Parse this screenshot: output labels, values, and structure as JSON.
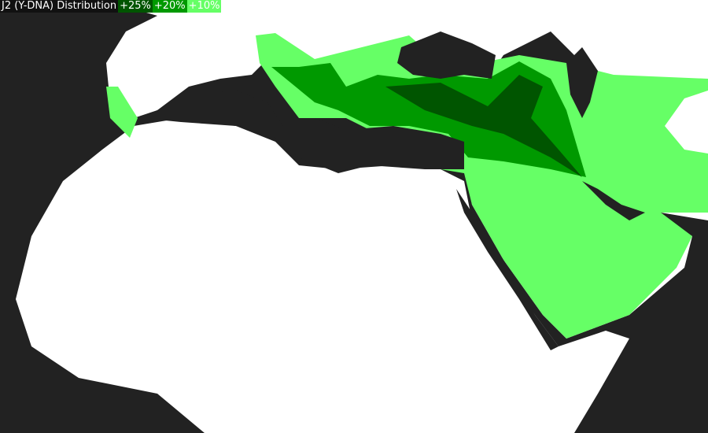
{
  "legend": {
    "title": "J2 (Y-DNA) Distribution",
    "items": [
      {
        "label": "+25%",
        "color": "#005500"
      },
      {
        "label": "+20%",
        "color": "#009900"
      },
      {
        "label": "+10%",
        "color": "#66ff66"
      }
    ]
  },
  "colors": {
    "sea": "#222222",
    "land": "#ffffff"
  }
}
